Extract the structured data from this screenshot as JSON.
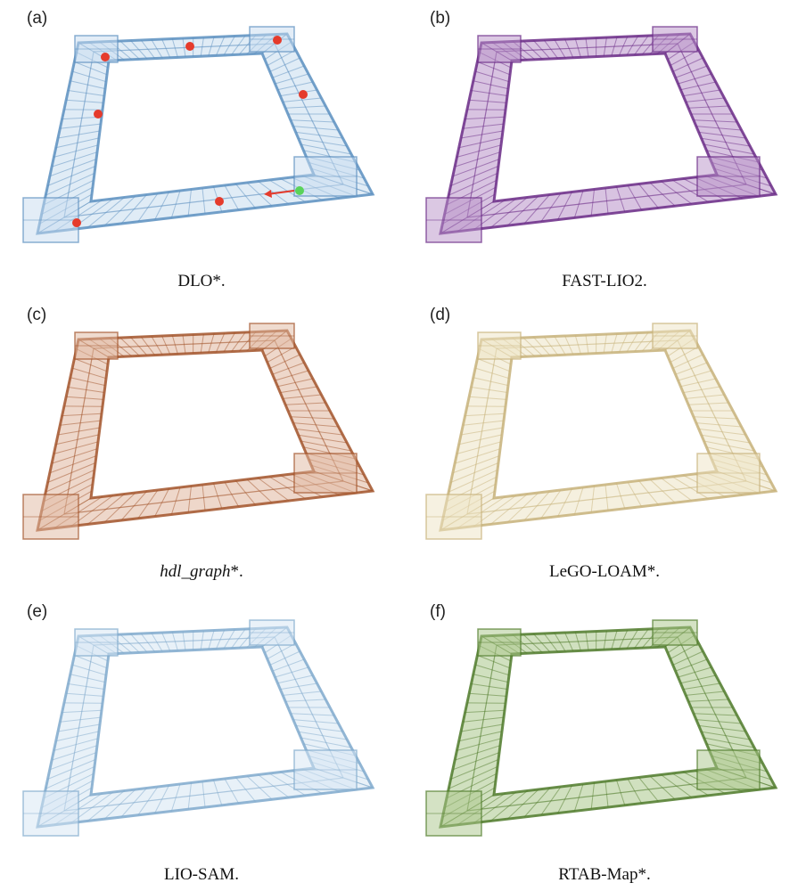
{
  "panels": [
    {
      "label": "(a)",
      "caption_italic": "",
      "caption_rest": "DLO*.",
      "color": "#5b8fbf",
      "light": "#c7dcef",
      "markers": true
    },
    {
      "label": "(b)",
      "caption_italic": "",
      "caption_rest": "FAST-LIO2.",
      "color": "#6a2a86",
      "light": "#b892c8",
      "markers": false
    },
    {
      "label": "(c)",
      "caption_italic": "hdl_graph",
      "caption_rest": "*.",
      "color": "#a2532a",
      "light": "#e0b79f",
      "markers": false
    },
    {
      "label": "(d)",
      "caption_italic": "",
      "caption_rest": "LeGO-LOAM*.",
      "color": "#c7b27a",
      "light": "#ede3c4",
      "markers": false
    },
    {
      "label": "(e)",
      "caption_italic": "",
      "caption_rest": "LIO-SAM.",
      "color": "#7fa9cc",
      "light": "#d6e6f3",
      "markers": false
    },
    {
      "label": "(f)",
      "caption_italic": "",
      "caption_rest": "RTAB-Map*.",
      "color": "#4f7a2a",
      "light": "#a9c68a",
      "markers": false
    }
  ]
}
